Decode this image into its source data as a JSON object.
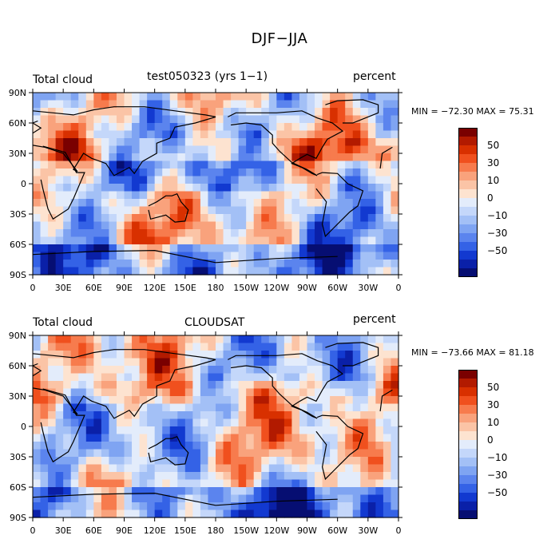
{
  "title": "DJF−JJA",
  "panels": [
    {
      "left_label": "Total cloud",
      "center_label": "test050323 (yrs 1−1)",
      "units": "percent",
      "stats": "MIN = −72.30 MAX =  75.31"
    },
    {
      "left_label": "Total cloud",
      "center_label": "CLOUDSAT",
      "units": "percent",
      "stats": "MIN = −73.66 MAX =  81.18"
    }
  ],
  "colorbar": {
    "levels": [
      "50",
      "30",
      "10",
      "0",
      "−10",
      "−30",
      "−50"
    ],
    "colors": [
      "#7a0000",
      "#b21a00",
      "#d83000",
      "#f0501e",
      "#f77b4d",
      "#f9a27c",
      "#fbc4a6",
      "#fde3d0",
      "#e3ecfb",
      "#c4d7fa",
      "#a3c0f6",
      "#7fa4f2",
      "#5b84ee",
      "#3462e6",
      "#1239d0",
      "#0a20a8",
      "#060e72"
    ]
  },
  "chart_data": [
    {
      "type": "heatmap",
      "title": "test050323 (yrs 1−1)",
      "xlabel": "",
      "ylabel": "",
      "x_ticks": [
        "0",
        "30E",
        "60E",
        "90E",
        "120E",
        "150E",
        "180",
        "150W",
        "120W",
        "90W",
        "60W",
        "30W",
        "0"
      ],
      "y_ticks": [
        "90N",
        "60N",
        "30N",
        "0",
        "30S",
        "60S",
        "90S"
      ],
      "xlim": [
        0,
        360
      ],
      "ylim": [
        -90,
        90
      ],
      "value_range": [
        -72.3,
        75.31
      ],
      "colorbar_levels": [
        -50,
        -30,
        -10,
        0,
        10,
        30,
        50
      ],
      "units": "percent"
    },
    {
      "type": "heatmap",
      "title": "CLOUDSAT",
      "xlabel": "",
      "ylabel": "",
      "x_ticks": [
        "0",
        "30E",
        "60E",
        "90E",
        "120E",
        "150E",
        "180",
        "150W",
        "120W",
        "90W",
        "60W",
        "30W",
        "0"
      ],
      "y_ticks": [
        "90N",
        "60N",
        "30N",
        "0",
        "30S",
        "60S",
        "90S"
      ],
      "xlim": [
        0,
        360
      ],
      "ylim": [
        -90,
        90
      ],
      "value_range": [
        -73.66,
        81.18
      ],
      "colorbar_levels": [
        -50,
        -30,
        -10,
        0,
        10,
        30,
        50
      ],
      "units": "percent"
    }
  ]
}
